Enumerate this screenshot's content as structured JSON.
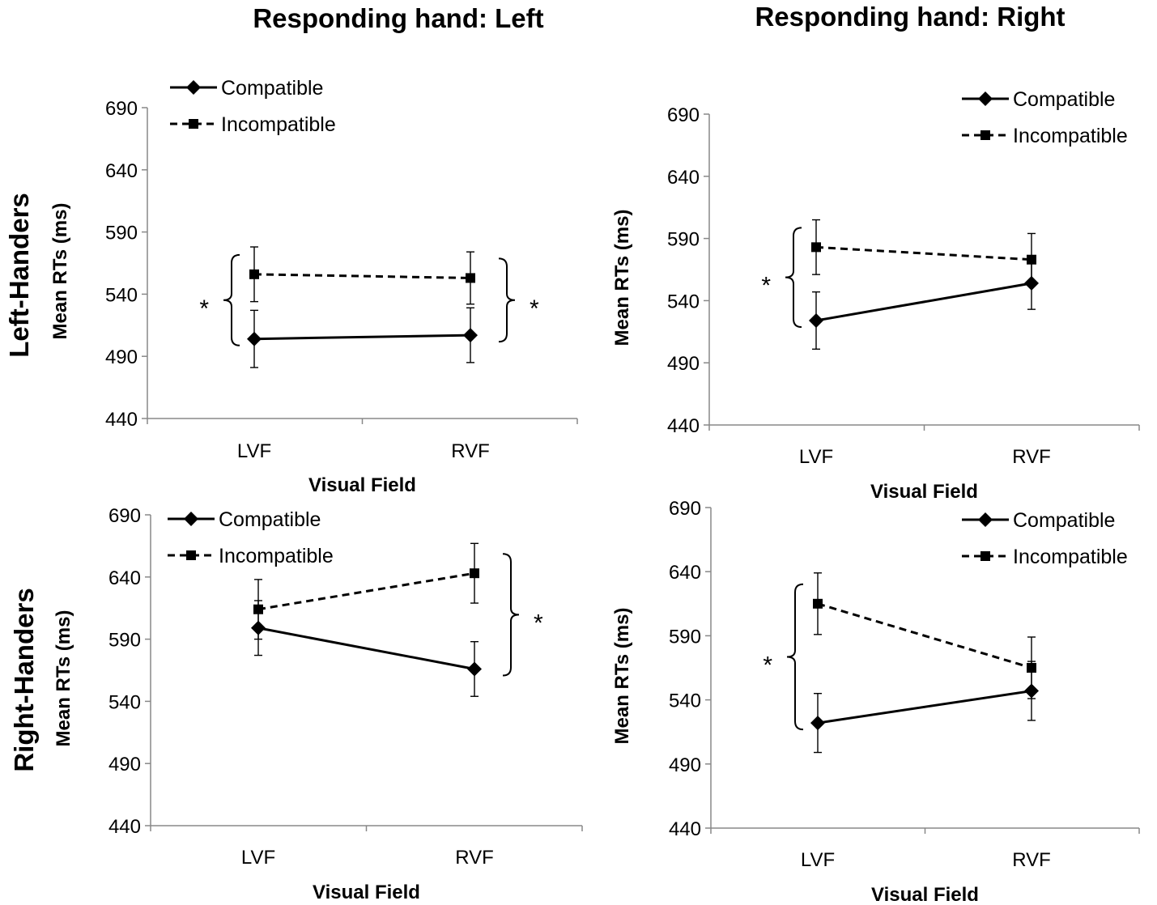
{
  "column_titles": [
    "Responding hand: Left",
    "Responding hand: Right"
  ],
  "row_titles": [
    "Left-Handers",
    "Right-Handers"
  ],
  "chart_data": [
    {
      "type": "line",
      "panel": "Left-Handers, Responding hand: Left",
      "categories": [
        "LVF",
        "RVF"
      ],
      "xlabel": "Visual Field",
      "ylabel": "Mean RTs (ms)",
      "ylim": [
        440,
        690
      ],
      "yticks": [
        "440",
        "490",
        "540",
        "590",
        "640",
        "690"
      ],
      "legend_position": "top-left",
      "series": [
        {
          "name": "Compatible",
          "style": "solid",
          "marker": "diamond",
          "values": [
            504,
            507
          ],
          "error": [
            23,
            22
          ]
        },
        {
          "name": "Incompatible",
          "style": "dashed",
          "marker": "square",
          "values": [
            556,
            553
          ],
          "error": [
            22,
            21
          ]
        }
      ],
      "significance": [
        {
          "category": "LVF",
          "side": "left",
          "label": "*"
        },
        {
          "category": "RVF",
          "side": "right",
          "label": "*"
        }
      ]
    },
    {
      "type": "line",
      "panel": "Left-Handers, Responding hand: Right",
      "categories": [
        "LVF",
        "RVF"
      ],
      "xlabel": "Visual Field",
      "ylabel": "Mean RTs (ms)",
      "ylim": [
        440,
        690
      ],
      "yticks": [
        "440",
        "490",
        "540",
        "590",
        "640",
        "690"
      ],
      "legend_position": "top-right",
      "series": [
        {
          "name": "Compatible",
          "style": "solid",
          "marker": "diamond",
          "values": [
            524,
            554
          ],
          "error": [
            23,
            21
          ]
        },
        {
          "name": "Incompatible",
          "style": "dashed",
          "marker": "square",
          "values": [
            583,
            573
          ],
          "error": [
            22,
            21
          ]
        }
      ],
      "significance": [
        {
          "category": "LVF",
          "side": "left",
          "label": "*"
        }
      ]
    },
    {
      "type": "line",
      "panel": "Right-Handers, Responding hand: Left",
      "categories": [
        "LVF",
        "RVF"
      ],
      "xlabel": "Visual Field",
      "ylabel": "Mean RTs (ms)",
      "ylim": [
        440,
        690
      ],
      "yticks": [
        "440",
        "490",
        "540",
        "590",
        "640",
        "690"
      ],
      "legend_position": "top-left",
      "series": [
        {
          "name": "Compatible",
          "style": "solid",
          "marker": "diamond",
          "values": [
            599,
            566
          ],
          "error": [
            22,
            22
          ]
        },
        {
          "name": "Incompatible",
          "style": "dashed",
          "marker": "square",
          "values": [
            614,
            643
          ],
          "error": [
            24,
            24
          ]
        }
      ],
      "significance": [
        {
          "category": "RVF",
          "side": "right",
          "label": "*"
        }
      ]
    },
    {
      "type": "line",
      "panel": "Right-Handers, Responding hand: Right",
      "categories": [
        "LVF",
        "RVF"
      ],
      "xlabel": "Visual Field",
      "ylabel": "Mean RTs (ms)",
      "ylim": [
        440,
        690
      ],
      "yticks": [
        "440",
        "490",
        "540",
        "590",
        "640",
        "690"
      ],
      "legend_position": "top-right",
      "series": [
        {
          "name": "Compatible",
          "style": "solid",
          "marker": "diamond",
          "values": [
            522,
            547
          ],
          "error": [
            23,
            23
          ]
        },
        {
          "name": "Incompatible",
          "style": "dashed",
          "marker": "square",
          "values": [
            615,
            565
          ],
          "error": [
            24,
            24
          ]
        }
      ],
      "significance": [
        {
          "category": "LVF",
          "side": "left",
          "label": "*"
        }
      ]
    }
  ]
}
